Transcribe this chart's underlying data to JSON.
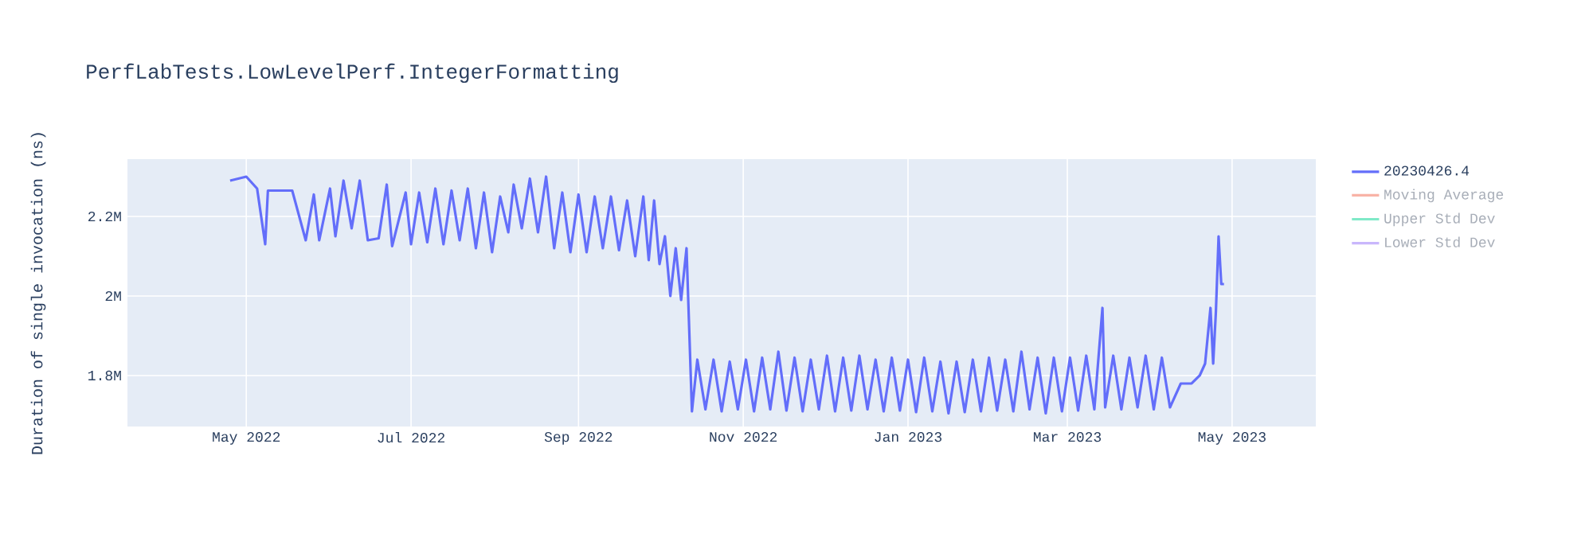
{
  "chart_data": {
    "type": "line",
    "title": "PerfLabTests.LowLevelPerf.IntegerFormatting",
    "ylabel": "Duration of single invocation (ns)",
    "xlim": [
      "2022-03-18",
      "2023-06-01"
    ],
    "xticks": [
      {
        "value": "2022-05-01",
        "label": "May 2022"
      },
      {
        "value": "2022-07-01",
        "label": "Jul 2022"
      },
      {
        "value": "2022-09-01",
        "label": "Sep 2022"
      },
      {
        "value": "2022-11-01",
        "label": "Nov 2022"
      },
      {
        "value": "2023-01-01",
        "label": "Jan 2023"
      },
      {
        "value": "2023-03-01",
        "label": "Mar 2023"
      },
      {
        "value": "2023-05-01",
        "label": "May 2023"
      }
    ],
    "ylim": [
      1672000,
      2344000
    ],
    "yticks": [
      {
        "value": 1800000,
        "label": "1.8M"
      },
      {
        "value": 2000000,
        "label": "2M"
      },
      {
        "value": 2200000,
        "label": "2.2M"
      }
    ],
    "grid": true,
    "legend": "right",
    "line_style": "solid",
    "series": [
      {
        "name": "20230426.4",
        "color": "#636efa",
        "x": [
          "2022-04-25",
          "2022-05-01",
          "2022-05-05",
          "2022-05-08",
          "2022-05-09",
          "2022-05-18",
          "2022-05-23",
          "2022-05-26",
          "2022-05-28",
          "2022-06-01",
          "2022-06-03",
          "2022-06-06",
          "2022-06-09",
          "2022-06-12",
          "2022-06-15",
          "2022-06-19",
          "2022-06-22",
          "2022-06-24",
          "2022-06-29",
          "2022-07-01",
          "2022-07-04",
          "2022-07-07",
          "2022-07-10",
          "2022-07-13",
          "2022-07-16",
          "2022-07-19",
          "2022-07-22",
          "2022-07-25",
          "2022-07-28",
          "2022-07-31",
          "2022-08-03",
          "2022-08-06",
          "2022-08-08",
          "2022-08-11",
          "2022-08-14",
          "2022-08-17",
          "2022-08-20",
          "2022-08-23",
          "2022-08-26",
          "2022-08-29",
          "2022-09-01",
          "2022-09-04",
          "2022-09-07",
          "2022-09-10",
          "2022-09-13",
          "2022-09-16",
          "2022-09-19",
          "2022-09-22",
          "2022-09-25",
          "2022-09-27",
          "2022-09-29",
          "2022-10-01",
          "2022-10-03",
          "2022-10-05",
          "2022-10-07",
          "2022-10-09",
          "2022-10-11",
          "2022-10-13",
          "2022-10-15",
          "2022-10-18",
          "2022-10-21",
          "2022-10-24",
          "2022-10-27",
          "2022-10-30",
          "2022-11-02",
          "2022-11-05",
          "2022-11-08",
          "2022-11-11",
          "2022-11-14",
          "2022-11-17",
          "2022-11-20",
          "2022-11-23",
          "2022-11-26",
          "2022-11-29",
          "2022-12-02",
          "2022-12-05",
          "2022-12-08",
          "2022-12-11",
          "2022-12-14",
          "2022-12-17",
          "2022-12-20",
          "2022-12-23",
          "2022-12-26",
          "2022-12-29",
          "2023-01-01",
          "2023-01-04",
          "2023-01-07",
          "2023-01-10",
          "2023-01-13",
          "2023-01-16",
          "2023-01-19",
          "2023-01-22",
          "2023-01-25",
          "2023-01-28",
          "2023-01-31",
          "2023-02-03",
          "2023-02-06",
          "2023-02-09",
          "2023-02-12",
          "2023-02-15",
          "2023-02-18",
          "2023-02-21",
          "2023-02-24",
          "2023-02-27",
          "2023-03-02",
          "2023-03-05",
          "2023-03-08",
          "2023-03-11",
          "2023-03-14",
          "2023-03-15",
          "2023-03-18",
          "2023-03-21",
          "2023-03-24",
          "2023-03-27",
          "2023-03-30",
          "2023-04-02",
          "2023-04-05",
          "2023-04-08",
          "2023-04-12",
          "2023-04-16",
          "2023-04-19",
          "2023-04-21",
          "2023-04-23",
          "2023-04-24",
          "2023-04-25",
          "2023-04-26",
          "2023-04-27",
          "2023-04-28"
        ],
        "values": [
          2290000,
          2300000,
          2270000,
          2130000,
          2265000,
          2265000,
          2140000,
          2255000,
          2140000,
          2270000,
          2150000,
          2290000,
          2170000,
          2290000,
          2140000,
          2145000,
          2280000,
          2125000,
          2260000,
          2130000,
          2260000,
          2135000,
          2270000,
          2130000,
          2265000,
          2140000,
          2270000,
          2120000,
          2260000,
          2110000,
          2250000,
          2160000,
          2280000,
          2170000,
          2295000,
          2160000,
          2300000,
          2120000,
          2260000,
          2110000,
          2255000,
          2110000,
          2250000,
          2120000,
          2250000,
          2115000,
          2240000,
          2100000,
          2250000,
          2090000,
          2240000,
          2080000,
          2150000,
          2000000,
          2120000,
          1990000,
          2120000,
          1710000,
          1840000,
          1715000,
          1840000,
          1710000,
          1835000,
          1715000,
          1840000,
          1710000,
          1845000,
          1715000,
          1860000,
          1712000,
          1845000,
          1710000,
          1840000,
          1715000,
          1850000,
          1710000,
          1845000,
          1712000,
          1850000,
          1715000,
          1840000,
          1710000,
          1845000,
          1712000,
          1840000,
          1708000,
          1845000,
          1710000,
          1835000,
          1705000,
          1835000,
          1708000,
          1840000,
          1710000,
          1845000,
          1712000,
          1840000,
          1710000,
          1860000,
          1715000,
          1845000,
          1705000,
          1845000,
          1710000,
          1845000,
          1712000,
          1850000,
          1715000,
          1970000,
          1720000,
          1850000,
          1715000,
          1845000,
          1720000,
          1850000,
          1715000,
          1845000,
          1720000,
          1780000,
          1780000,
          1800000,
          1830000,
          1970000,
          1830000,
          1960000,
          2150000,
          2030000,
          2030000
        ]
      },
      {
        "name": "Moving Average",
        "color": "#f8b3a6"
      },
      {
        "name": "Upper Std Dev",
        "color": "#7fe9c8"
      },
      {
        "name": "Lower Std Dev",
        "color": "#c9b7fc"
      }
    ]
  }
}
